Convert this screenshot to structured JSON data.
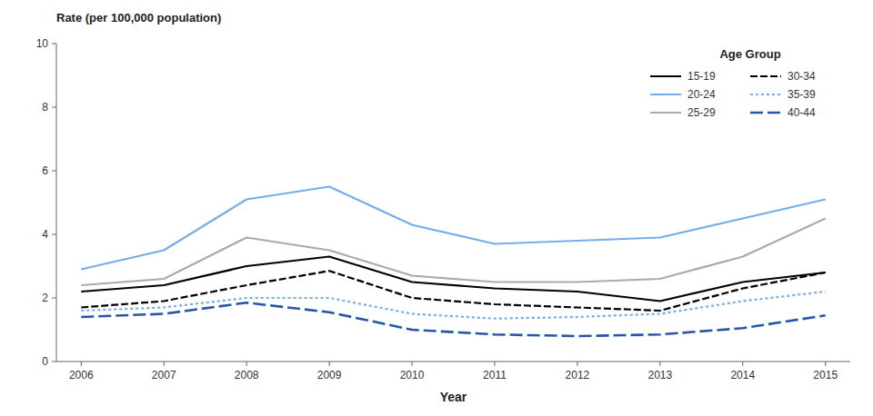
{
  "chart_data": {
    "type": "line",
    "x_label": "Year",
    "y_label": "Rate (per 100,000 population)",
    "legend_title": "Age Group",
    "x": [
      2006,
      2007,
      2008,
      2009,
      2010,
      2011,
      2012,
      2013,
      2014,
      2015
    ],
    "series": [
      {
        "name": "15-19",
        "color": "#000000",
        "line_style": "solid",
        "values": [
          2.2,
          2.4,
          3.0,
          3.3,
          2.5,
          2.3,
          2.2,
          1.9,
          2.5,
          2.8
        ]
      },
      {
        "name": "20-24",
        "color": "#74ade8",
        "line_style": "solid",
        "values": [
          2.9,
          3.5,
          5.1,
          5.5,
          4.3,
          3.7,
          3.8,
          3.9,
          4.5,
          5.1
        ]
      },
      {
        "name": "25-29",
        "color": "#aaaaaa",
        "line_style": "solid",
        "values": [
          2.4,
          2.6,
          3.9,
          3.5,
          2.7,
          2.5,
          2.5,
          2.6,
          3.3,
          4.5
        ]
      },
      {
        "name": "30-34",
        "color": "#000000",
        "line_style": "dashed",
        "values": [
          1.7,
          1.9,
          2.4,
          2.85,
          2.0,
          1.8,
          1.7,
          1.6,
          2.3,
          2.8
        ]
      },
      {
        "name": "35-39",
        "color": "#74ade8",
        "line_style": "dotted",
        "values": [
          1.6,
          1.7,
          2.0,
          2.0,
          1.5,
          1.35,
          1.4,
          1.5,
          1.9,
          2.2
        ]
      },
      {
        "name": "40-44",
        "color": "#2457a4",
        "line_style": "longdash",
        "values": [
          1.4,
          1.5,
          1.85,
          1.55,
          1.0,
          0.85,
          0.8,
          0.85,
          1.05,
          1.45
        ]
      }
    ],
    "xlim": [
      2005.7,
      2015.3
    ],
    "xticks": [
      2006,
      2007,
      2008,
      2009,
      2010,
      2011,
      2012,
      2013,
      2014,
      2015
    ],
    "ylim": [
      0,
      10
    ],
    "yticks": [
      0,
      2,
      4,
      6,
      8,
      10
    ],
    "grid": false,
    "legend": "upper-right"
  }
}
